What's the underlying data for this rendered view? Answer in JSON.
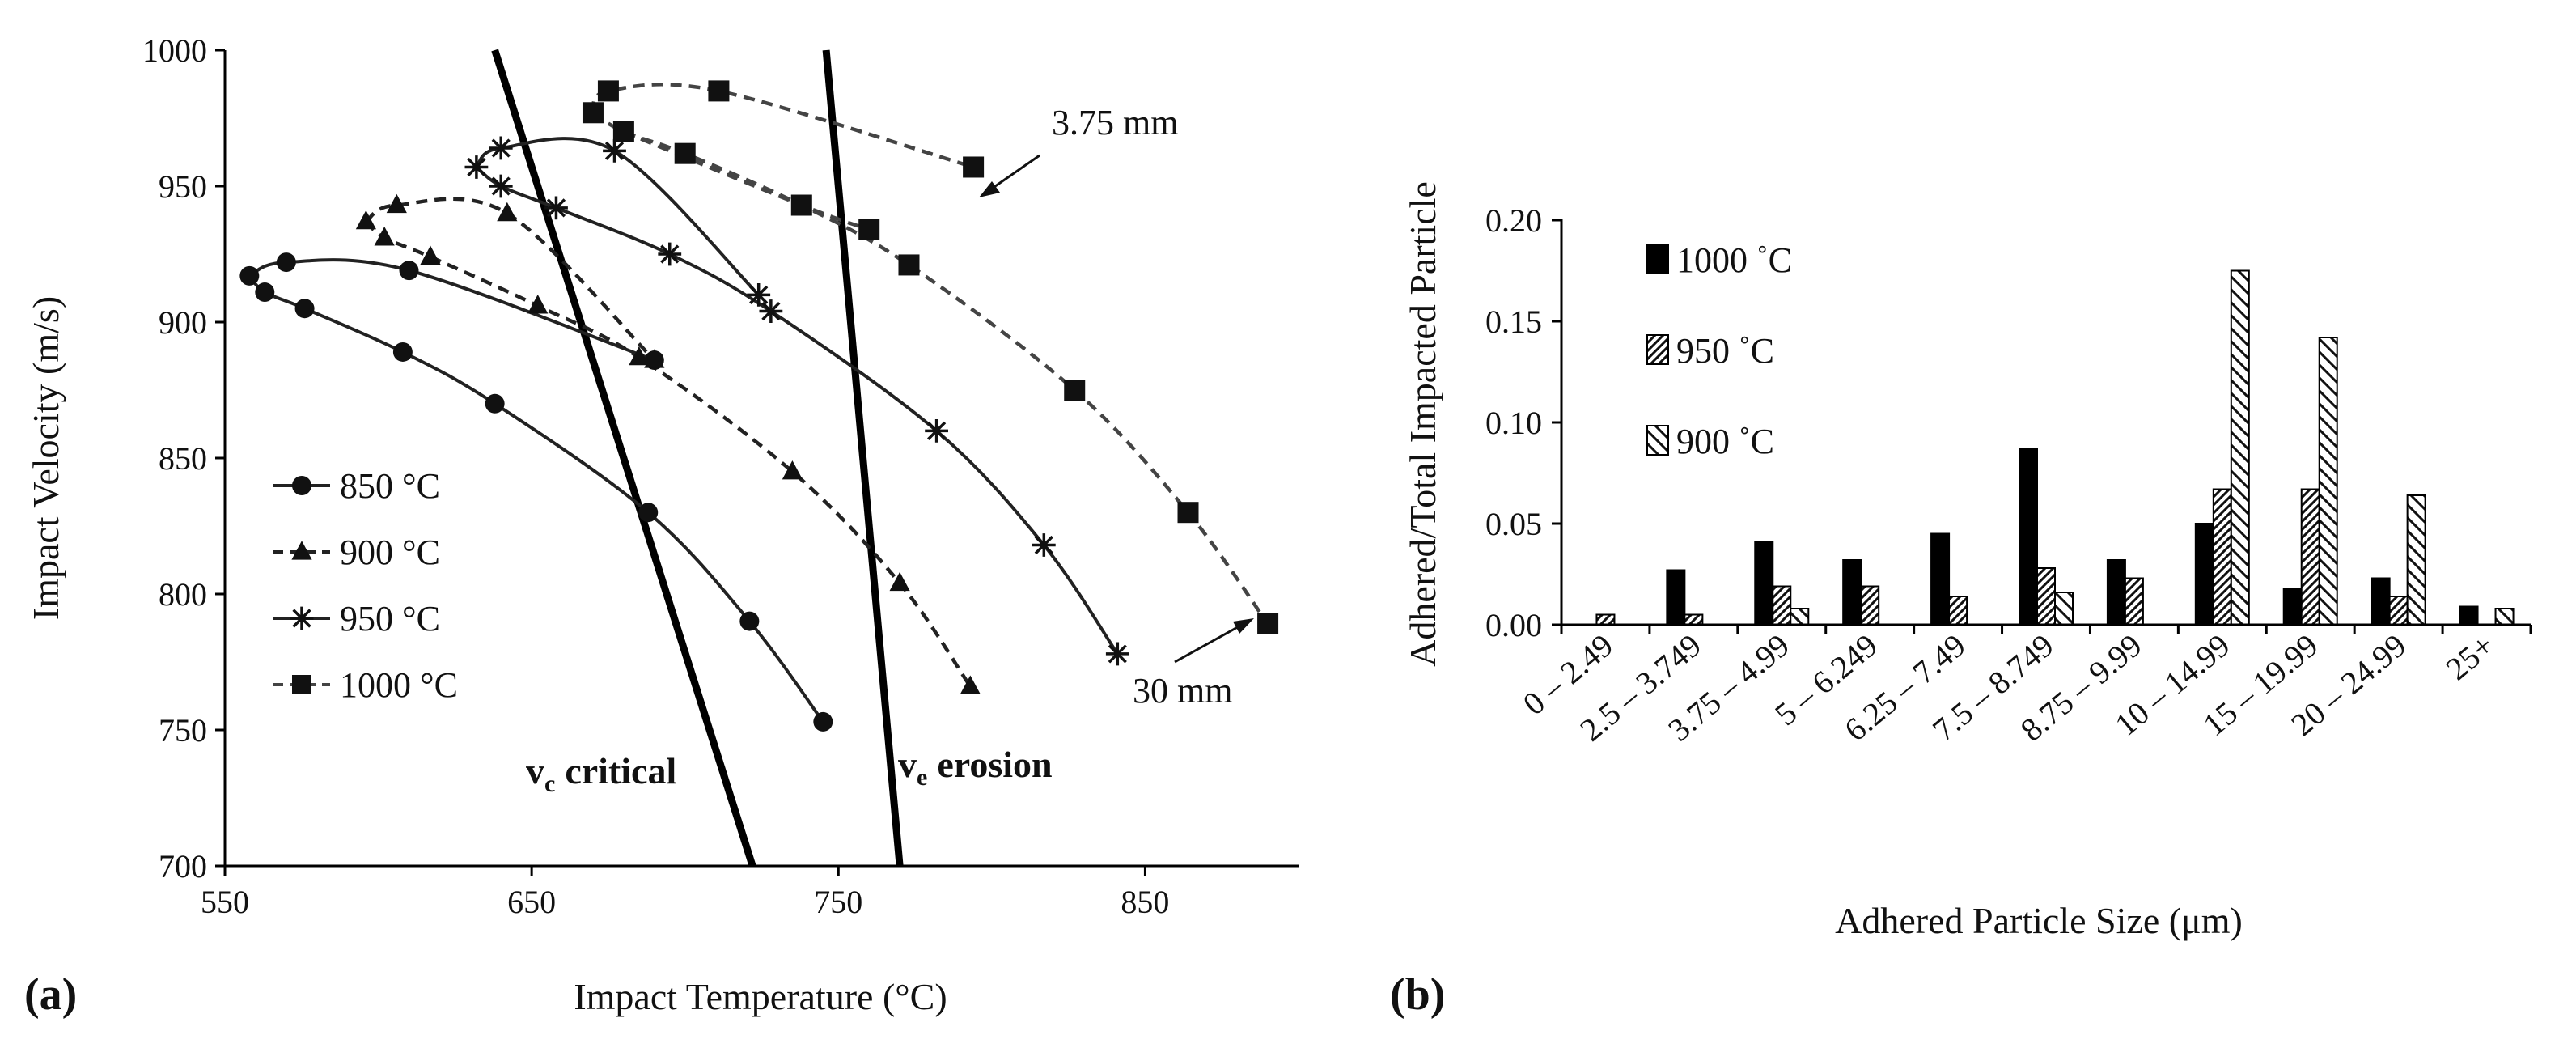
{
  "chart_data": [
    {
      "panel_label": "(a)",
      "type": "line",
      "xlabel": "Impact Temperature (°C)",
      "ylabel": "Impact Velocity (m/s)",
      "xlim": [
        550,
        900
      ],
      "ylim": [
        700,
        1000
      ],
      "xticks": [
        "550",
        "650",
        "750",
        "850"
      ],
      "xtick_values": [
        550,
        650,
        750,
        850
      ],
      "yticks": [
        "700",
        "750",
        "800",
        "850",
        "900",
        "950",
        "1000"
      ],
      "ytick_values": [
        700,
        750,
        800,
        850,
        900,
        950,
        1000
      ],
      "legend_position": "lower-left",
      "series": [
        {
          "name": "850 °C",
          "marker": "circle",
          "dash": "solid",
          "color": "#222222",
          "curves": [
            [
              [
                558,
                917
              ],
              [
                563,
                911
              ],
              [
                576,
                905
              ],
              [
                608,
                889
              ],
              [
                638,
                870
              ],
              [
                688,
                830
              ],
              [
                721,
                790
              ],
              [
                745,
                753
              ]
            ],
            [
              [
                558,
                917
              ],
              [
                570,
                922
              ],
              [
                610,
                919
              ],
              [
                690,
                886
              ]
            ]
          ]
        },
        {
          "name": "900 °C",
          "marker": "triangle",
          "dash": "dashed",
          "color": "#222222",
          "curves": [
            [
              [
                596,
                937
              ],
              [
                602,
                931
              ],
              [
                617,
                924
              ],
              [
                652,
                906
              ],
              [
                685,
                887
              ],
              [
                735,
                845
              ],
              [
                770,
                804
              ],
              [
                793,
                766
              ]
            ],
            [
              [
                596,
                937
              ],
              [
                606,
                943
              ],
              [
                642,
                940
              ],
              [
                690,
                886
              ]
            ]
          ]
        },
        {
          "name": "950 °C",
          "marker": "star",
          "dash": "solid",
          "color": "#222222",
          "curves": [
            [
              [
                632,
                957
              ],
              [
                640,
                950
              ],
              [
                658,
                942
              ],
              [
                695,
                925
              ],
              [
                728,
                904
              ],
              [
                782,
                860
              ],
              [
                817,
                818
              ],
              [
                841,
                778
              ]
            ],
            [
              [
                632,
                957
              ],
              [
                640,
                964
              ],
              [
                677,
                963
              ],
              [
                724,
                910
              ]
            ]
          ]
        },
        {
          "name": "1000 °C",
          "marker": "square",
          "dash": "dashed",
          "color": "#444444",
          "curves": [
            [
              [
                670,
                977
              ],
              [
                680,
                970
              ],
              [
                700,
                962
              ],
              [
                738,
                943
              ],
              [
                773,
                921
              ],
              [
                827,
                875
              ],
              [
                864,
                830
              ],
              [
                890,
                789
              ]
            ],
            [
              [
                670,
                977
              ],
              [
                675,
                985
              ],
              [
                711,
                985
              ],
              [
                794,
                957
              ]
            ],
            [
              [
                680,
                970
              ],
              [
                738,
                943
              ],
              [
                760,
                934
              ]
            ]
          ]
        }
      ],
      "boundaries": [
        {
          "name": "v<sub>c</sub> critical",
          "sym": "v",
          "sub": "c",
          "label": "critical",
          "points": [
            [
              638,
              1000
            ],
            [
              722,
              700
            ]
          ]
        },
        {
          "name": "v<sub>e</sub> erosion",
          "sym": "v",
          "sub": "e",
          "label": "erosion",
          "points": [
            [
              746,
              1000
            ],
            [
              770,
              700
            ]
          ]
        }
      ],
      "annotations": [
        {
          "text": "3.75 mm",
          "target": [
            794,
            957
          ]
        },
        {
          "text": "30 mm",
          "target": [
            890,
            789
          ]
        }
      ]
    },
    {
      "panel_label": "(b)",
      "type": "bar",
      "xlabel": "Adhered Particle Size (μm)",
      "ylabel": "Adhered/Total Impacted Particle",
      "ylim": [
        0,
        0.2
      ],
      "yticks": [
        "0.00",
        "0.05",
        "0.10",
        "0.15",
        "0.20"
      ],
      "ytick_values": [
        0,
        0.05,
        0.1,
        0.15,
        0.2
      ],
      "legend_position": "top-left",
      "categories": [
        "0 – 2.49",
        "2.5 – 3.749",
        "3.75 – 4.99",
        "5 – 6.249",
        "6.25 – 7.49",
        "7.5 – 8.749",
        "8.75 – 9.99",
        "10 – 14.99",
        "15 – 19.99",
        "20 – 24.99",
        "25+"
      ],
      "series": [
        {
          "name": "1000 ˚C",
          "pattern": "solid",
          "values": [
            0,
            0.027,
            0.041,
            0.032,
            0.045,
            0.087,
            0.032,
            0.05,
            0.018,
            0.023,
            0.009
          ]
        },
        {
          "name": "950 ˚C",
          "pattern": "dense-hatch",
          "values": [
            0.005,
            0.005,
            0.019,
            0.019,
            0.014,
            0.028,
            0.023,
            0.067,
            0.067,
            0.014,
            0
          ]
        },
        {
          "name": "900 ˚C",
          "pattern": "sparse-hatch",
          "values": [
            0,
            0,
            0.008,
            0,
            0,
            0.016,
            0,
            0.175,
            0.142,
            0.064,
            0.008
          ]
        }
      ]
    }
  ]
}
